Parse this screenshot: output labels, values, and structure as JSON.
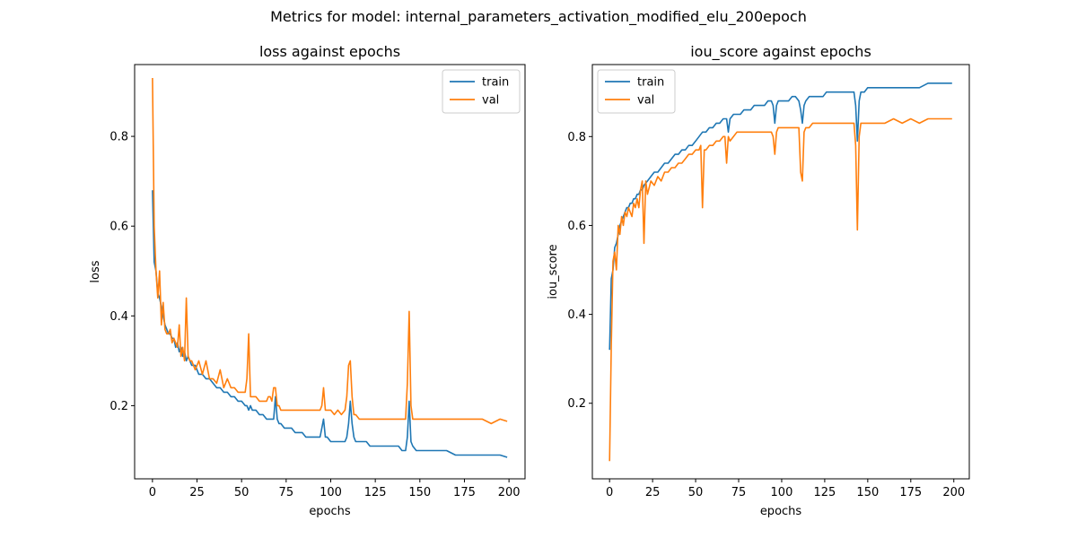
{
  "figure": {
    "suptitle": "Metrics for model: internal_parameters_activation_modified_elu_200epoch"
  },
  "chart_data": [
    {
      "type": "line",
      "title": "loss against epochs",
      "xlabel": "epochs",
      "ylabel": "loss",
      "xlim": [
        -10,
        209
      ],
      "ylim": [
        0.037,
        0.96
      ],
      "xticks": [
        0,
        25,
        50,
        75,
        100,
        125,
        150,
        175,
        200
      ],
      "yticks": [
        0.2,
        0.4,
        0.6,
        0.8
      ],
      "ytick_labels": [
        "0.2",
        "0.4",
        "0.6",
        "0.8"
      ],
      "legend": "top-right",
      "grid": false,
      "series": [
        {
          "name": "train",
          "color": "#1f77b4",
          "x": [
            0,
            1,
            2,
            3,
            4,
            5,
            6,
            7,
            8,
            9,
            10,
            11,
            12,
            13,
            14,
            15,
            16,
            17,
            18,
            19,
            20,
            22,
            24,
            26,
            28,
            30,
            32,
            34,
            36,
            38,
            40,
            42,
            44,
            46,
            48,
            50,
            52,
            53,
            54,
            55,
            56,
            58,
            60,
            62,
            64,
            65,
            66,
            67,
            68,
            69,
            70,
            71,
            72,
            74,
            76,
            78,
            80,
            82,
            84,
            86,
            88,
            90,
            92,
            94,
            95,
            96,
            97,
            98,
            100,
            102,
            104,
            106,
            108,
            109,
            110,
            111,
            112,
            113,
            114,
            116,
            118,
            120,
            122,
            124,
            126,
            128,
            130,
            132,
            134,
            136,
            138,
            140,
            142,
            143,
            144,
            145,
            146,
            148,
            150,
            152,
            155,
            160,
            165,
            170,
            175,
            180,
            185,
            190,
            195,
            199
          ],
          "values": [
            0.68,
            0.52,
            0.5,
            0.45,
            0.44,
            0.42,
            0.4,
            0.38,
            0.37,
            0.36,
            0.36,
            0.35,
            0.35,
            0.33,
            0.34,
            0.32,
            0.33,
            0.31,
            0.32,
            0.3,
            0.31,
            0.29,
            0.29,
            0.27,
            0.27,
            0.26,
            0.26,
            0.25,
            0.24,
            0.24,
            0.23,
            0.23,
            0.22,
            0.22,
            0.21,
            0.21,
            0.2,
            0.2,
            0.19,
            0.2,
            0.19,
            0.19,
            0.18,
            0.18,
            0.17,
            0.17,
            0.17,
            0.17,
            0.17,
            0.22,
            0.17,
            0.16,
            0.16,
            0.15,
            0.15,
            0.15,
            0.14,
            0.14,
            0.14,
            0.13,
            0.13,
            0.13,
            0.13,
            0.13,
            0.15,
            0.17,
            0.13,
            0.13,
            0.12,
            0.12,
            0.12,
            0.12,
            0.12,
            0.13,
            0.16,
            0.21,
            0.16,
            0.13,
            0.12,
            0.12,
            0.12,
            0.12,
            0.11,
            0.11,
            0.11,
            0.11,
            0.11,
            0.11,
            0.11,
            0.11,
            0.11,
            0.1,
            0.1,
            0.13,
            0.21,
            0.12,
            0.11,
            0.1,
            0.1,
            0.1,
            0.1,
            0.1,
            0.1,
            0.09,
            0.09,
            0.09,
            0.09,
            0.09,
            0.09,
            0.085
          ]
        },
        {
          "name": "val",
          "color": "#ff7f0e",
          "x": [
            0,
            1,
            2,
            3,
            4,
            5,
            6,
            7,
            8,
            9,
            10,
            11,
            12,
            13,
            14,
            15,
            16,
            17,
            18,
            19,
            20,
            21,
            22,
            24,
            26,
            28,
            30,
            32,
            34,
            36,
            38,
            40,
            42,
            44,
            46,
            48,
            50,
            52,
            53,
            54,
            55,
            56,
            58,
            60,
            62,
            64,
            65,
            66,
            67,
            68,
            69,
            70,
            71,
            72,
            74,
            76,
            78,
            80,
            82,
            84,
            86,
            88,
            90,
            92,
            94,
            95,
            96,
            97,
            98,
            100,
            102,
            104,
            106,
            108,
            109,
            110,
            111,
            112,
            113,
            114,
            116,
            118,
            120,
            122,
            124,
            126,
            128,
            130,
            132,
            134,
            136,
            138,
            140,
            142,
            143,
            144,
            145,
            146,
            148,
            150,
            152,
            155,
            160,
            165,
            170,
            175,
            180,
            185,
            190,
            195,
            199
          ],
          "values": [
            0.93,
            0.6,
            0.5,
            0.44,
            0.5,
            0.38,
            0.43,
            0.37,
            0.36,
            0.36,
            0.37,
            0.34,
            0.35,
            0.34,
            0.33,
            0.38,
            0.31,
            0.33,
            0.3,
            0.44,
            0.31,
            0.3,
            0.3,
            0.28,
            0.3,
            0.27,
            0.3,
            0.26,
            0.26,
            0.25,
            0.28,
            0.24,
            0.26,
            0.24,
            0.24,
            0.23,
            0.23,
            0.23,
            0.26,
            0.36,
            0.22,
            0.22,
            0.22,
            0.21,
            0.21,
            0.21,
            0.22,
            0.22,
            0.21,
            0.24,
            0.24,
            0.2,
            0.2,
            0.19,
            0.19,
            0.19,
            0.19,
            0.19,
            0.19,
            0.19,
            0.19,
            0.19,
            0.19,
            0.19,
            0.19,
            0.2,
            0.24,
            0.19,
            0.19,
            0.19,
            0.18,
            0.19,
            0.18,
            0.19,
            0.22,
            0.29,
            0.3,
            0.22,
            0.18,
            0.18,
            0.17,
            0.17,
            0.17,
            0.17,
            0.17,
            0.17,
            0.17,
            0.17,
            0.17,
            0.17,
            0.17,
            0.17,
            0.17,
            0.17,
            0.25,
            0.41,
            0.2,
            0.17,
            0.17,
            0.17,
            0.17,
            0.17,
            0.17,
            0.17,
            0.17,
            0.17,
            0.17,
            0.17,
            0.16,
            0.17,
            0.165
          ]
        }
      ]
    },
    {
      "type": "line",
      "title": "iou_score against epochs",
      "xlabel": "epochs",
      "ylabel": "iou_score",
      "xlim": [
        -10,
        209
      ],
      "ylim": [
        0.03,
        0.962
      ],
      "xticks": [
        0,
        25,
        50,
        75,
        100,
        125,
        150,
        175,
        200
      ],
      "yticks": [
        0.2,
        0.4,
        0.6,
        0.8
      ],
      "ytick_labels": [
        "0.2",
        "0.4",
        "0.6",
        "0.8"
      ],
      "legend": "top-left",
      "grid": false,
      "series": [
        {
          "name": "train",
          "color": "#1f77b4",
          "x": [
            0,
            1,
            2,
            3,
            4,
            5,
            6,
            7,
            8,
            9,
            10,
            11,
            12,
            13,
            14,
            15,
            16,
            17,
            18,
            19,
            20,
            22,
            24,
            26,
            28,
            30,
            32,
            34,
            36,
            38,
            40,
            42,
            44,
            46,
            48,
            50,
            52,
            54,
            56,
            58,
            60,
            62,
            64,
            66,
            67,
            68,
            69,
            70,
            72,
            74,
            76,
            78,
            80,
            82,
            84,
            86,
            88,
            90,
            92,
            94,
            95,
            96,
            97,
            98,
            100,
            102,
            104,
            106,
            108,
            110,
            111,
            112,
            113,
            114,
            116,
            118,
            120,
            122,
            124,
            126,
            128,
            130,
            132,
            134,
            136,
            138,
            140,
            142,
            143,
            144,
            145,
            146,
            148,
            150,
            155,
            160,
            165,
            170,
            175,
            180,
            185,
            190,
            195,
            199
          ],
          "values": [
            0.32,
            0.48,
            0.5,
            0.55,
            0.56,
            0.58,
            0.6,
            0.61,
            0.62,
            0.63,
            0.64,
            0.64,
            0.65,
            0.65,
            0.66,
            0.66,
            0.67,
            0.67,
            0.68,
            0.68,
            0.69,
            0.7,
            0.71,
            0.72,
            0.72,
            0.73,
            0.74,
            0.74,
            0.75,
            0.76,
            0.76,
            0.77,
            0.77,
            0.78,
            0.78,
            0.79,
            0.8,
            0.81,
            0.81,
            0.82,
            0.82,
            0.83,
            0.83,
            0.84,
            0.84,
            0.84,
            0.81,
            0.84,
            0.85,
            0.85,
            0.85,
            0.86,
            0.86,
            0.86,
            0.87,
            0.87,
            0.87,
            0.87,
            0.88,
            0.88,
            0.87,
            0.83,
            0.87,
            0.88,
            0.88,
            0.88,
            0.88,
            0.89,
            0.89,
            0.88,
            0.86,
            0.83,
            0.87,
            0.88,
            0.89,
            0.89,
            0.89,
            0.89,
            0.89,
            0.9,
            0.9,
            0.9,
            0.9,
            0.9,
            0.9,
            0.9,
            0.9,
            0.9,
            0.87,
            0.79,
            0.88,
            0.9,
            0.9,
            0.91,
            0.91,
            0.91,
            0.91,
            0.91,
            0.91,
            0.91,
            0.92,
            0.92,
            0.92,
            0.92
          ]
        },
        {
          "name": "val",
          "color": "#ff7f0e",
          "x": [
            0,
            1,
            2,
            3,
            4,
            5,
            6,
            7,
            8,
            9,
            10,
            11,
            12,
            13,
            14,
            15,
            16,
            17,
            18,
            19,
            20,
            21,
            22,
            24,
            26,
            28,
            30,
            32,
            34,
            36,
            38,
            40,
            42,
            44,
            46,
            48,
            50,
            52,
            53,
            54,
            55,
            56,
            58,
            60,
            62,
            64,
            66,
            67,
            68,
            69,
            70,
            72,
            74,
            76,
            78,
            80,
            82,
            84,
            86,
            88,
            90,
            92,
            94,
            95,
            96,
            97,
            98,
            100,
            102,
            104,
            106,
            108,
            110,
            111,
            112,
            113,
            114,
            116,
            118,
            120,
            122,
            124,
            126,
            128,
            130,
            132,
            134,
            136,
            138,
            140,
            142,
            143,
            144,
            145,
            146,
            148,
            150,
            155,
            160,
            165,
            170,
            175,
            180,
            185,
            190,
            195,
            199
          ],
          "values": [
            0.07,
            0.33,
            0.52,
            0.54,
            0.5,
            0.6,
            0.58,
            0.62,
            0.6,
            0.63,
            0.62,
            0.64,
            0.63,
            0.62,
            0.65,
            0.64,
            0.66,
            0.64,
            0.68,
            0.7,
            0.56,
            0.7,
            0.67,
            0.7,
            0.69,
            0.71,
            0.7,
            0.72,
            0.72,
            0.73,
            0.73,
            0.74,
            0.74,
            0.75,
            0.76,
            0.76,
            0.77,
            0.77,
            0.78,
            0.64,
            0.77,
            0.77,
            0.78,
            0.78,
            0.79,
            0.79,
            0.8,
            0.8,
            0.74,
            0.8,
            0.79,
            0.8,
            0.81,
            0.81,
            0.81,
            0.81,
            0.81,
            0.81,
            0.81,
            0.81,
            0.81,
            0.81,
            0.81,
            0.8,
            0.76,
            0.81,
            0.82,
            0.82,
            0.82,
            0.82,
            0.82,
            0.82,
            0.82,
            0.72,
            0.7,
            0.81,
            0.82,
            0.82,
            0.83,
            0.83,
            0.83,
            0.83,
            0.83,
            0.83,
            0.83,
            0.83,
            0.83,
            0.83,
            0.83,
            0.83,
            0.83,
            0.78,
            0.59,
            0.8,
            0.83,
            0.83,
            0.83,
            0.83,
            0.83,
            0.84,
            0.83,
            0.84,
            0.83,
            0.84,
            0.84,
            0.84,
            0.84
          ]
        }
      ]
    }
  ]
}
